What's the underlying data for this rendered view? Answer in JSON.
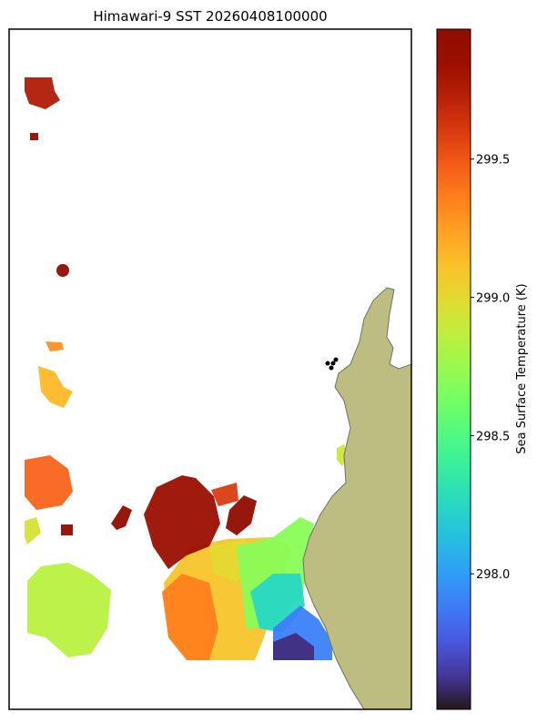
{
  "chart_data": {
    "type": "heatmap",
    "title": "Himawari-9 SST 20260408100000",
    "colorbar_label": "Sea Surface Temperature (K)",
    "colormap": "turbo",
    "clim": [
      297.51,
      299.97
    ],
    "cticks": [
      {
        "value": 298,
        "label": "298.0"
      },
      298.5,
      {
        "value": 299,
        "label": "299.0"
      },
      299.5
    ],
    "sst_samples": [
      299.75,
      299.9,
      299.95,
      299.3,
      299.15,
      299.45,
      298.85,
      299.85,
      299.95,
      299.35,
      298.7,
      298.25,
      297.9,
      297.6,
      299.0,
      299.95,
      299.95,
      298.9,
      299.1,
      299.6,
      298.95
    ],
    "land_color": "#bdbd82"
  }
}
